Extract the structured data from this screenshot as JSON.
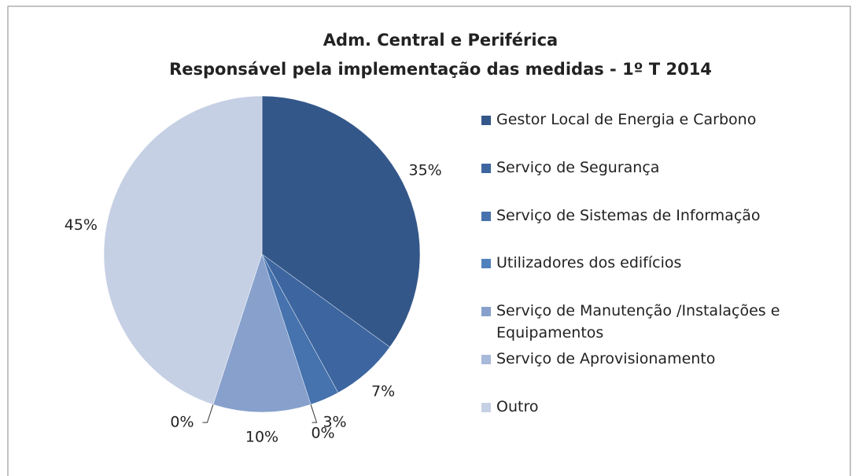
{
  "chart_data": {
    "type": "pie",
    "title": "Adm. Central e Periférica",
    "subtitle": "Responsável pela implementação das medidas - 1º T 2014",
    "categories": [
      "Gestor Local de Energia e Carbono",
      "Serviço de Segurança",
      "Serviço de Sistemas de Informação",
      "Utilizadores dos edifícios",
      "Serviço de Manutenção /Instalações e Equipamentos",
      "Serviço de Aprovisionamento",
      "Outro"
    ],
    "values": [
      35,
      7,
      3,
      0,
      10,
      0,
      45
    ],
    "value_labels": [
      "35%",
      "7%",
      "3%",
      "0%",
      "10%",
      "0%",
      "45%"
    ],
    "colors": [
      "#34578a",
      "#3d66a0",
      "#4672ad",
      "#4f81bd",
      "#87a0cc",
      "#a8b9d9",
      "#c6d0e4"
    ],
    "legend": "right"
  }
}
